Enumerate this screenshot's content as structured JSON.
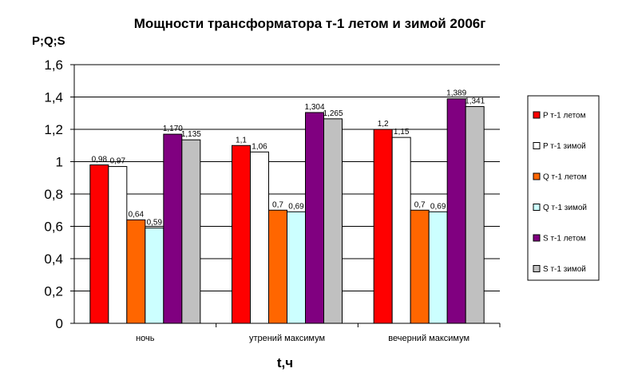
{
  "chart_data": {
    "type": "bar",
    "title": "Мощности трансформатора т-1 летом и зимой 2006г",
    "ylabel": "P;Q;S",
    "xlabel": "t,ч",
    "categories": [
      "ночь",
      "утрений максимум",
      "вечерний максимум"
    ],
    "ylim": [
      0,
      1.6
    ],
    "yticks": [
      "0",
      "0,2",
      "0,4",
      "0,6",
      "0,8",
      "1",
      "1,2",
      "1,4",
      "1,6"
    ],
    "grid": true,
    "legend_position": "right",
    "series": [
      {
        "name": "P т-1 летом",
        "color": "#ff0000",
        "values": [
          0.98,
          1.1,
          1.2
        ],
        "labels": [
          "0,98",
          "1,1",
          "1,2"
        ]
      },
      {
        "name": "P т-1 зимой",
        "color": "#ffffff",
        "values": [
          0.97,
          1.06,
          1.15
        ],
        "labels": [
          "0,97",
          "1,06",
          "1,15"
        ]
      },
      {
        "name": "Q т-1 летом",
        "color": "#ff6600",
        "values": [
          0.64,
          0.7,
          0.7
        ],
        "labels": [
          "0,64",
          "0,7",
          "0,7"
        ]
      },
      {
        "name": "Q т-1 зимой",
        "color": "#ccffff",
        "values": [
          0.59,
          0.69,
          0.69
        ],
        "labels": [
          "0,59",
          "0,69",
          "0,69"
        ]
      },
      {
        "name": "S т-1 летом",
        "color": "#800080",
        "values": [
          1.17,
          1.304,
          1.389
        ],
        "labels": [
          "1,170",
          "1,304",
          "1,389"
        ]
      },
      {
        "name": "S т-1 зимой",
        "color": "#c0c0c0",
        "values": [
          1.135,
          1.265,
          1.341
        ],
        "labels": [
          "1,135",
          "1,265",
          "1,341"
        ]
      }
    ]
  }
}
